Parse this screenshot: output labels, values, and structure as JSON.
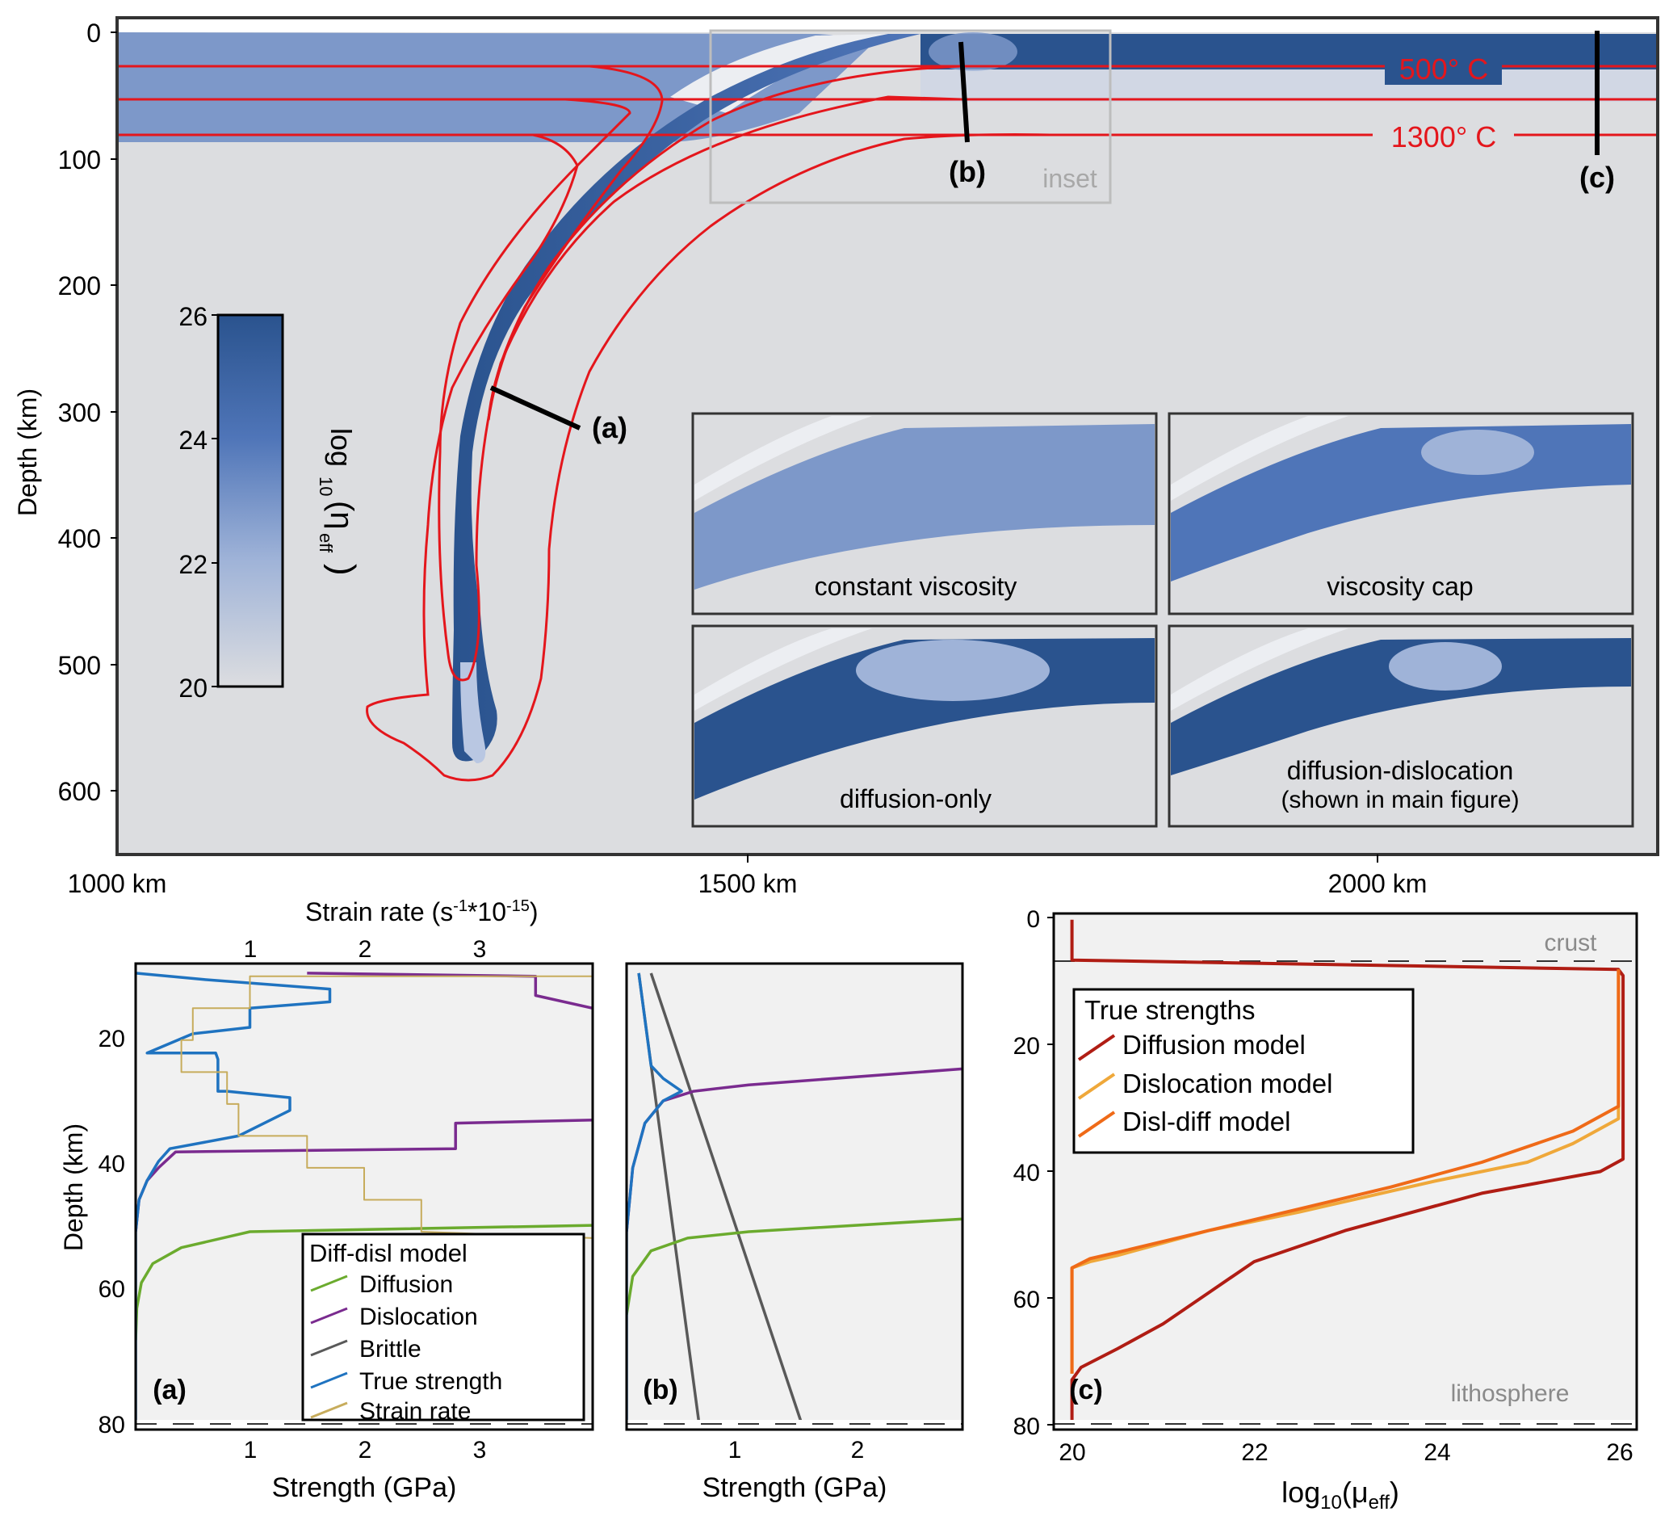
{
  "colors": {
    "bg_mantle": "#dcdde0",
    "plate_light": "#7d98c9",
    "plate_dark": "#2a538e",
    "plate_mid": "#4f75b8",
    "plate_pale": "#b9c7e2",
    "isotherm": "#e4161c",
    "panel_bg": "#f1f1f1",
    "diffusion": "#6bab2e",
    "dislocation": "#7a2b8f",
    "brittle": "#595959",
    "true_strength": "#1f73c0",
    "strain_rate": "#c7ac5c",
    "c_diffusion": "#b01d14",
    "c_dislocation": "#efa83a",
    "c_disldiff": "#ef6a18",
    "inset_box": "#bdbdbd",
    "inset_label": "#a8a8a8",
    "crust_label": "#8a8a8a"
  },
  "main": {
    "ylabel": "Depth (km)",
    "yticks": [
      "0",
      "100",
      "200",
      "300",
      "400",
      "500",
      "600"
    ],
    "xticks": [
      "1000 km",
      "1500 km",
      "2000 km"
    ],
    "iso_500": "500° C",
    "iso_1300": "1300° C",
    "marker_a": "(a)",
    "marker_b": "(b)",
    "marker_c": "(c)",
    "inset_label": "inset",
    "colorbar": {
      "ticks": [
        "26",
        "24",
        "22",
        "20"
      ],
      "label_main": "log",
      "label_sub1": "10",
      "label_eta": "(η",
      "label_sub2": "eff",
      "label_close": ")"
    },
    "insets": [
      "constant viscosity",
      "viscosity cap",
      "diffusion-only",
      "diffusion-dislocation",
      "(shown in main figure)"
    ]
  },
  "chart_data": [
    {
      "type": "line",
      "panel": "(a)",
      "top_axis_label": "Strain rate (s-1*10-15)",
      "top_ticks": [
        "1",
        "2",
        "3"
      ],
      "xlabel": "Strength (GPa)",
      "ylabel": "Depth (km)",
      "xticks": [
        "1",
        "2",
        "3"
      ],
      "yticks": [
        "20",
        "40",
        "60",
        "80"
      ],
      "xlim": [
        0,
        4
      ],
      "ylim": [
        81,
        8
      ],
      "legend_title": "Diff-disl model",
      "legend": [
        "Diffusion",
        "Dislocation",
        "Brittle",
        "True strength",
        "Strain rate"
      ],
      "series": [
        {
          "name": "Diffusion",
          "points": [
            [
              0,
              67
            ],
            [
              0.01,
              62
            ],
            [
              0.05,
              58
            ],
            [
              0.15,
              55
            ],
            [
              0.4,
              52.5
            ],
            [
              1.0,
              50
            ],
            [
              4.0,
              49
            ]
          ]
        },
        {
          "name": "Dislocation",
          "points": [
            [
              0,
              50
            ],
            [
              0.03,
              45
            ],
            [
              0.1,
              42
            ],
            [
              0.2,
              40
            ],
            [
              0.35,
              37.5
            ],
            [
              2.8,
              37
            ],
            [
              2.8,
              33
            ],
            [
              4.0,
              32.5
            ]
          ]
        },
        {
          "name": "Dislocation",
          "points": [
            [
              1.5,
              9.5
            ],
            [
              3.5,
              10
            ],
            [
              3.5,
              13
            ],
            [
              4.0,
              15
            ]
          ]
        },
        {
          "name": "True strength",
          "points": [
            [
              0,
              81
            ],
            [
              0,
              50
            ],
            [
              0.03,
              45
            ],
            [
              0.1,
              42
            ],
            [
              0.2,
              39
            ],
            [
              0.3,
              37
            ],
            [
              0.9,
              35
            ],
            [
              1.35,
              31
            ],
            [
              1.35,
              29
            ],
            [
              0.8,
              28
            ],
            [
              0.72,
              28
            ],
            [
              0.72,
              25
            ],
            [
              0.72,
              23
            ],
            [
              0.7,
              22
            ],
            [
              0.1,
              22
            ],
            [
              0.5,
              19
            ],
            [
              1.0,
              18
            ],
            [
              1.0,
              15
            ],
            [
              1.7,
              14
            ],
            [
              1.7,
              12
            ],
            [
              0.6,
              10.5
            ],
            [
              0,
              9.5
            ]
          ]
        },
        {
          "name": "Strain rate",
          "points": [
            [
              4.0,
              10
            ],
            [
              1.0,
              10
            ],
            [
              1.0,
              15
            ],
            [
              0.5,
              15
            ],
            [
              0.5,
              20
            ],
            [
              0.4,
              20
            ],
            [
              0.4,
              25
            ],
            [
              0.8,
              25
            ],
            [
              0.8,
              30
            ],
            [
              0.9,
              30
            ],
            [
              0.9,
              35
            ],
            [
              1.5,
              35
            ],
            [
              1.5,
              40
            ],
            [
              2.0,
              40
            ],
            [
              2.0,
              45
            ],
            [
              2.5,
              45
            ],
            [
              2.5,
              50
            ],
            [
              4.0,
              51
            ]
          ]
        }
      ]
    },
    {
      "type": "line",
      "panel": "(b)",
      "xlabel": "Strength (GPa)",
      "xticks": [
        "1",
        "2"
      ],
      "xlim": [
        0,
        2.75
      ],
      "ylim": [
        81,
        8
      ],
      "series": [
        {
          "name": "Brittle",
          "points": [
            [
              0.1,
              9.5
            ],
            [
              0.6,
              81
            ]
          ]
        },
        {
          "name": "Brittle",
          "points": [
            [
              0.2,
              9.5
            ],
            [
              1.45,
              81
            ]
          ]
        },
        {
          "name": "Dislocation",
          "points": [
            [
              0,
              50
            ],
            [
              0.05,
              40
            ],
            [
              0.15,
              33
            ],
            [
              0.3,
              29.5
            ],
            [
              0.55,
              28
            ],
            [
              1.0,
              27
            ],
            [
              2.75,
              24.5
            ]
          ]
        },
        {
          "name": "Diffusion",
          "points": [
            [
              0,
              63
            ],
            [
              0.05,
              57
            ],
            [
              0.2,
              53
            ],
            [
              0.5,
              51
            ],
            [
              1.0,
              50
            ],
            [
              2.75,
              48
            ]
          ]
        },
        {
          "name": "True strength",
          "points": [
            [
              0,
              81
            ],
            [
              0,
              50
            ],
            [
              0.05,
              40
            ],
            [
              0.15,
              33
            ],
            [
              0.3,
              29.5
            ],
            [
              0.45,
              28
            ],
            [
              0.3,
              26
            ],
            [
              0.2,
              24
            ],
            [
              0.1,
              9.5
            ]
          ]
        }
      ]
    },
    {
      "type": "line",
      "panel": "(c)",
      "xlabel": "log10(μeff)",
      "ylabel": "",
      "xticks": [
        "20",
        "22",
        "24",
        "26"
      ],
      "yticks": [
        "0",
        "20",
        "40",
        "60",
        "80"
      ],
      "xlim": [
        19.8,
        26.2
      ],
      "ylim": [
        83,
        0
      ],
      "legend_title": "True strengths",
      "legend": [
        "Diffusion model",
        "Dislocation model",
        "Disl-diff model"
      ],
      "annotations": [
        "crust",
        "lithosphere"
      ],
      "series": [
        {
          "name": "Diffusion model",
          "points": [
            [
              20.0,
              1
            ],
            [
              20.0,
              7.5
            ],
            [
              26.0,
              9
            ],
            [
              26.05,
              10
            ],
            [
              26.05,
              39.5
            ],
            [
              25.8,
              41.5
            ],
            [
              24.5,
              45
            ],
            [
              23.0,
              51
            ],
            [
              22.0,
              56
            ],
            [
              21.5,
              61
            ],
            [
              21.0,
              66
            ],
            [
              20.5,
              70
            ],
            [
              20.1,
              73
            ],
            [
              20.0,
              75
            ],
            [
              20.0,
              83
            ]
          ]
        },
        {
          "name": "Dislocation model",
          "points": [
            [
              26.0,
              9
            ],
            [
              26.0,
              33
            ],
            [
              25.5,
              37
            ],
            [
              25.0,
              40
            ],
            [
              24.0,
              43
            ],
            [
              22.5,
              48
            ],
            [
              21.5,
              51
            ],
            [
              20.5,
              55
            ],
            [
              20.2,
              56
            ],
            [
              20.0,
              57
            ],
            [
              20.0,
              74
            ]
          ]
        },
        {
          "name": "Disl-diff model",
          "points": [
            [
              26.0,
              9
            ],
            [
              26.0,
              31
            ],
            [
              25.5,
              35
            ],
            [
              24.5,
              40
            ],
            [
              23.5,
              44
            ],
            [
              22.5,
              47.5
            ],
            [
              21.5,
              51
            ],
            [
              20.5,
              54.5
            ],
            [
              20.2,
              55.5
            ],
            [
              20.0,
              57
            ],
            [
              20.0,
              74
            ]
          ]
        }
      ]
    }
  ]
}
